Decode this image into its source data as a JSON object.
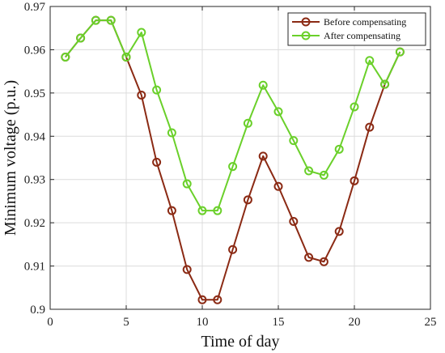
{
  "chart_data": {
    "type": "line",
    "xlabel": "Time of day",
    "ylabel": "Minimum voltage (p.u.)",
    "xlim": [
      0,
      25
    ],
    "ylim": [
      0.9,
      0.97
    ],
    "xticks": [
      0,
      5,
      10,
      15,
      20,
      25
    ],
    "yticks": [
      0.9,
      0.91,
      0.92,
      0.93,
      0.94,
      0.95,
      0.96,
      0.97
    ],
    "x_tick_labels": [
      "0",
      "5",
      "10",
      "15",
      "20",
      "25"
    ],
    "y_tick_labels": [
      "0.9",
      "0.91",
      "0.92",
      "0.93",
      "0.94",
      "0.95",
      "0.96",
      "0.97"
    ],
    "grid": true,
    "legend_position": "top-right",
    "series": [
      {
        "name": "Before compensating",
        "color": "#8b2a14",
        "marker": "circle",
        "x": [
          1,
          2,
          3,
          4,
          5,
          6,
          7,
          8,
          9,
          10,
          11,
          12,
          13,
          14,
          15,
          16,
          17,
          18,
          19,
          20,
          21,
          22,
          23
        ],
        "values": [
          0.9583,
          0.9627,
          0.9668,
          0.9668,
          0.9583,
          0.9495,
          0.934,
          0.9228,
          0.9092,
          0.9022,
          0.9022,
          0.9138,
          0.9253,
          0.9354,
          0.9284,
          0.9203,
          0.912,
          0.911,
          0.918,
          0.9297,
          0.9421,
          0.952,
          0.9595
        ]
      },
      {
        "name": "After compensating",
        "color": "#6ad02a",
        "marker": "circle",
        "x": [
          1,
          2,
          3,
          4,
          5,
          6,
          7,
          8,
          9,
          10,
          11,
          12,
          13,
          14,
          15,
          16,
          17,
          18,
          19,
          20,
          21,
          22,
          23
        ],
        "values": [
          0.9583,
          0.9627,
          0.9668,
          0.9668,
          0.9583,
          0.964,
          0.9507,
          0.9408,
          0.929,
          0.9228,
          0.9228,
          0.933,
          0.943,
          0.9518,
          0.9457,
          0.939,
          0.932,
          0.931,
          0.937,
          0.9468,
          0.9575,
          0.952,
          0.9595
        ]
      }
    ]
  }
}
